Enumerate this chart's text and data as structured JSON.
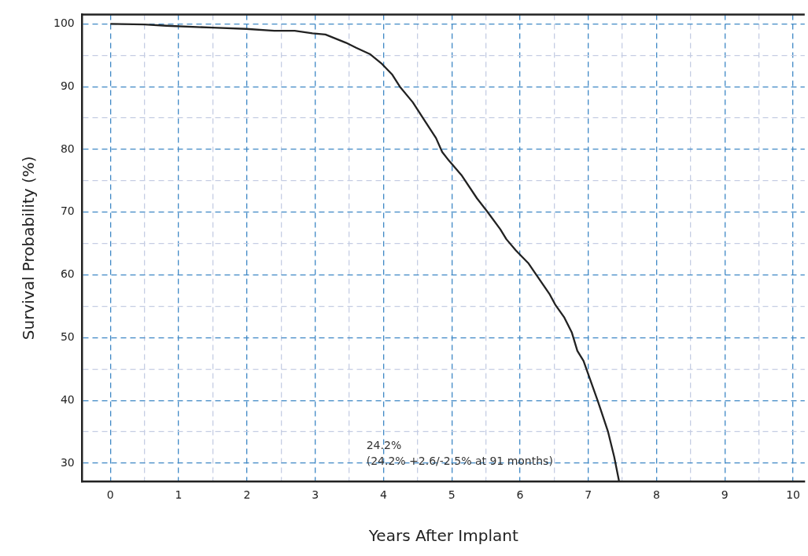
{
  "chart_data": {
    "type": "line",
    "xlabel": "Years After Implant",
    "ylabel": "Survival Probability (%)",
    "xlim": [
      -0.41,
      10.17
    ],
    "ylim": [
      27.1,
      101.5
    ],
    "xticks": [
      0,
      {
        "value": 0.5,
        "label": null
      },
      1,
      {
        "value": 1.5,
        "label": null
      },
      2,
      {
        "value": 2.5,
        "label": null
      },
      3,
      {
        "value": 3.5,
        "label": null
      },
      4,
      {
        "value": 4.5,
        "label": null
      },
      5,
      {
        "value": 5.5,
        "label": null
      },
      6,
      {
        "value": 6.5,
        "label": null
      },
      7,
      {
        "value": 7.5,
        "label": null
      },
      8,
      {
        "value": 8.5,
        "label": null
      },
      9,
      {
        "value": 9.5,
        "label": null
      },
      10
    ],
    "yticks": [
      30,
      {
        "value": 35,
        "label": null
      },
      40,
      {
        "value": 45,
        "label": null
      },
      50,
      {
        "value": 55,
        "label": null
      },
      60,
      {
        "value": 65,
        "label": null
      },
      70,
      {
        "value": 75,
        "label": null
      },
      80,
      {
        "value": 85,
        "label": null
      },
      90,
      {
        "value": 95,
        "label": null
      },
      100
    ],
    "grid": true,
    "marker": "none",
    "line_style": "solid",
    "series": [
      {
        "color": "#222222",
        "x": [
          0,
          0.5,
          0.82,
          1.5,
          1.99,
          2.4,
          2.7,
          2.96,
          3.15,
          3.45,
          3.6,
          3.8,
          3.98,
          4.13,
          4.24,
          4.43,
          4.62,
          4.77,
          4.86,
          4.96,
          5.15,
          5.37,
          5.52,
          5.71,
          5.8,
          5.94,
          6.12,
          6.24,
          6.43,
          6.52,
          6.65,
          6.76,
          6.84,
          6.93,
          7.14,
          7.29,
          7.38,
          7.45
        ],
        "values": [
          100,
          99.9,
          99.7,
          99.4,
          99.2,
          98.9,
          98.9,
          98.5,
          98.3,
          97,
          96.2,
          95.2,
          93.6,
          91.9,
          90,
          87.5,
          84.3,
          81.8,
          79.6,
          78.2,
          75.8,
          72.2,
          70.1,
          67.3,
          65.7,
          63.9,
          61.9,
          60,
          57,
          55.2,
          53.2,
          50.8,
          47.9,
          46.3,
          39.9,
          35,
          31,
          27.2
        ]
      }
    ],
    "annotations": [
      "24.2%",
      "(24.2% +2.6/-2.5% at 91 months)"
    ]
  }
}
